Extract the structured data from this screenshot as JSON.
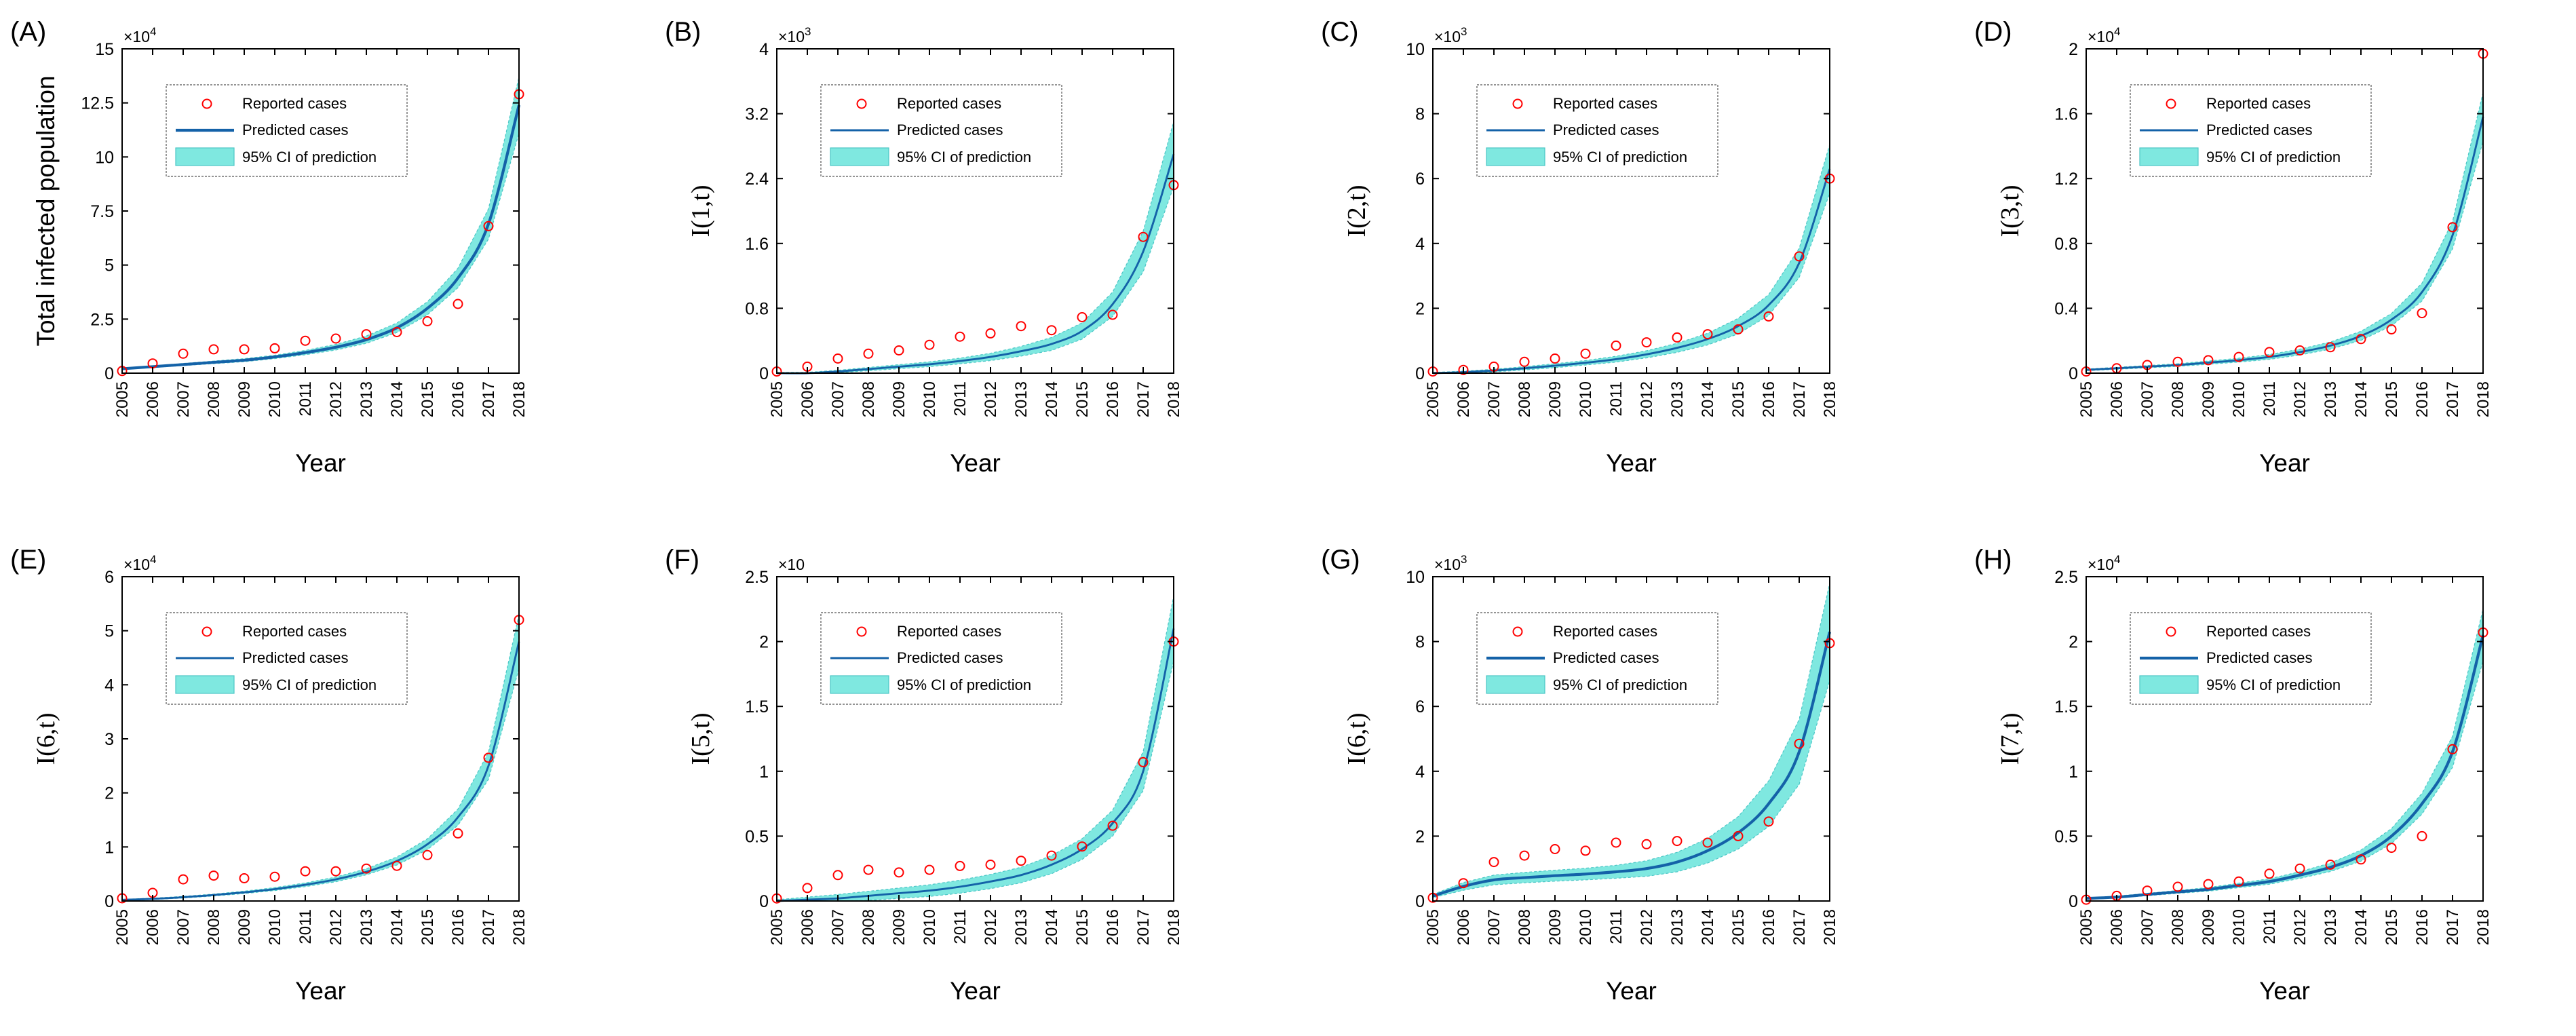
{
  "style": {
    "band_color": "#7fe8e0",
    "band_edge_color": "#4cc6c6",
    "line_color": "#1462a8",
    "marker_color": "#ff0000",
    "axis_color": "#000000"
  },
  "legend": {
    "reported": "Reported cases",
    "predicted": "Predicted cases",
    "ci": "95% CI of prediction"
  },
  "chart_data": [
    {
      "panel": "(A)",
      "type": "line",
      "xlabel": "Year",
      "ylabel": "Total infected population",
      "ylabel_style": "plain",
      "multiplier": "×10",
      "exponent": "4",
      "ylim": [
        0,
        15
      ],
      "yticks": [
        0,
        2.5,
        5,
        7.5,
        10,
        12.5,
        15
      ],
      "ytick_labels": [
        "0",
        "2.5",
        "5",
        "7.5",
        "10",
        "12.5",
        "15"
      ],
      "x": [
        2005,
        2006,
        2007,
        2008,
        2009,
        2010,
        2011,
        2012,
        2013,
        2014,
        2015,
        2016,
        2017,
        2018
      ],
      "reported": [
        0.1,
        0.45,
        0.9,
        1.1,
        1.1,
        1.15,
        1.5,
        1.6,
        1.8,
        1.9,
        2.4,
        3.2,
        6.8,
        12.9
      ],
      "predicted": [
        0.2,
        0.3,
        0.4,
        0.5,
        0.6,
        0.75,
        0.95,
        1.2,
        1.55,
        2.1,
        3.0,
        4.4,
        6.9,
        12.4
      ],
      "ci_half_width": [
        0.03,
        0.04,
        0.05,
        0.06,
        0.07,
        0.08,
        0.1,
        0.13,
        0.17,
        0.22,
        0.3,
        0.45,
        0.7,
        1.3
      ],
      "legend_position": "top-left",
      "line_width": 2.6
    },
    {
      "panel": "(B)",
      "type": "line",
      "xlabel": "Year",
      "ylabel": "I(1,t)",
      "ylabel_style": "italic",
      "multiplier": "×10",
      "exponent": "3",
      "ylim": [
        0,
        4
      ],
      "yticks": [
        0,
        0.8,
        1.6,
        2.4,
        3.2,
        4
      ],
      "ytick_labels": [
        "0",
        "0.8",
        "1.6",
        "2.4",
        "3.2",
        "4"
      ],
      "x": [
        2005,
        2006,
        2007,
        2008,
        2009,
        2010,
        2011,
        2012,
        2013,
        2014,
        2015,
        2016,
        2017,
        2018
      ],
      "reported": [
        0.02,
        0.08,
        0.18,
        0.24,
        0.28,
        0.35,
        0.45,
        0.49,
        0.58,
        0.53,
        0.69,
        0.72,
        1.68,
        2.32
      ],
      "predicted": [
        0.0,
        0.0,
        0.02,
        0.05,
        0.08,
        0.11,
        0.15,
        0.2,
        0.27,
        0.36,
        0.52,
        0.85,
        1.5,
        2.7
      ],
      "ci_half_width": [
        0.01,
        0.01,
        0.015,
        0.02,
        0.025,
        0.03,
        0.035,
        0.045,
        0.06,
        0.08,
        0.1,
        0.15,
        0.25,
        0.4
      ],
      "legend_position": "top-left",
      "line_width": 1.8
    },
    {
      "panel": "(C)",
      "type": "line",
      "xlabel": "Year",
      "ylabel": "I(2,t)",
      "ylabel_style": "italic",
      "multiplier": "×10",
      "exponent": "3",
      "ylim": [
        0,
        10
      ],
      "yticks": [
        0,
        2,
        4,
        6,
        8,
        10
      ],
      "ytick_labels": [
        "0",
        "2",
        "4",
        "6",
        "8",
        "10"
      ],
      "x": [
        2005,
        2006,
        2007,
        2008,
        2009,
        2010,
        2011,
        2012,
        2013,
        2014,
        2015,
        2016,
        2017,
        2018
      ],
      "reported": [
        0.05,
        0.1,
        0.2,
        0.35,
        0.45,
        0.6,
        0.85,
        0.95,
        1.1,
        1.2,
        1.35,
        1.75,
        3.6,
        6.0
      ],
      "predicted": [
        0.0,
        0.03,
        0.08,
        0.15,
        0.23,
        0.32,
        0.43,
        0.58,
        0.78,
        1.05,
        1.45,
        2.1,
        3.4,
        6.3
      ],
      "ci_half_width": [
        0.02,
        0.03,
        0.04,
        0.05,
        0.06,
        0.07,
        0.09,
        0.11,
        0.14,
        0.18,
        0.24,
        0.32,
        0.45,
        0.75
      ],
      "legend_position": "top-left",
      "line_width": 1.8
    },
    {
      "panel": "(D)",
      "type": "line",
      "xlabel": "Year",
      "ylabel": "I(3,t)",
      "ylabel_style": "italic",
      "multiplier": "×10",
      "exponent": "4",
      "ylim": [
        0,
        2
      ],
      "yticks": [
        0,
        0.4,
        0.8,
        1.2,
        1.6,
        2
      ],
      "ytick_labels": [
        "0",
        "0.4",
        "0.8",
        "1.2",
        "1.6",
        "2"
      ],
      "x": [
        2005,
        2006,
        2007,
        2008,
        2009,
        2010,
        2011,
        2012,
        2013,
        2014,
        2015,
        2016,
        2017,
        2018
      ],
      "reported": [
        0.01,
        0.03,
        0.05,
        0.07,
        0.08,
        0.1,
        0.13,
        0.14,
        0.16,
        0.21,
        0.27,
        0.37,
        0.9,
        1.97
      ],
      "predicted": [
        0.02,
        0.03,
        0.04,
        0.05,
        0.065,
        0.08,
        0.1,
        0.13,
        0.17,
        0.23,
        0.33,
        0.5,
        0.85,
        1.58
      ],
      "ci_half_width": [
        0.005,
        0.006,
        0.007,
        0.008,
        0.01,
        0.012,
        0.015,
        0.018,
        0.022,
        0.028,
        0.038,
        0.055,
        0.085,
        0.15
      ],
      "legend_position": "top-left",
      "line_width": 1.8
    },
    {
      "panel": "(E)",
      "type": "line",
      "xlabel": "Year",
      "ylabel": "I(6,t)",
      "ylabel_style": "italic",
      "multiplier": "×10",
      "exponent": "4",
      "ylim": [
        0,
        6
      ],
      "yticks": [
        0,
        1,
        2,
        3,
        4,
        5,
        6
      ],
      "ytick_labels": [
        "0",
        "1",
        "2",
        "3",
        "4",
        "5",
        "6"
      ],
      "x": [
        2005,
        2006,
        2007,
        2008,
        2009,
        2010,
        2011,
        2012,
        2013,
        2014,
        2015,
        2016,
        2017,
        2018
      ],
      "reported": [
        0.05,
        0.15,
        0.4,
        0.47,
        0.42,
        0.45,
        0.55,
        0.55,
        0.6,
        0.65,
        0.85,
        1.25,
        2.65,
        5.2
      ],
      "predicted": [
        0.02,
        0.04,
        0.07,
        0.11,
        0.16,
        0.22,
        0.3,
        0.4,
        0.54,
        0.74,
        1.05,
        1.55,
        2.5,
        4.8
      ],
      "ci_half_width": [
        0.01,
        0.012,
        0.015,
        0.018,
        0.022,
        0.027,
        0.034,
        0.043,
        0.056,
        0.075,
        0.1,
        0.15,
        0.25,
        0.5
      ],
      "legend_position": "top-left",
      "line_width": 1.8
    },
    {
      "panel": "(F)",
      "type": "line",
      "xlabel": "Year",
      "ylabel": "I(5,t)",
      "ylabel_style": "italic",
      "multiplier": "×10",
      "exponent": "",
      "ylim": [
        0,
        2.5
      ],
      "yticks": [
        0,
        0.5,
        1,
        1.5,
        2,
        2.5
      ],
      "ytick_labels": [
        "0",
        "0.5",
        "1",
        "1.5",
        "2",
        "2.5"
      ],
      "x": [
        2005,
        2006,
        2007,
        2008,
        2009,
        2010,
        2011,
        2012,
        2013,
        2014,
        2015,
        2016,
        2017,
        2018
      ],
      "reported": [
        0.02,
        0.1,
        0.2,
        0.24,
        0.22,
        0.24,
        0.27,
        0.28,
        0.31,
        0.35,
        0.42,
        0.58,
        1.07,
        2.0
      ],
      "predicted": [
        0.0,
        0.01,
        0.02,
        0.04,
        0.06,
        0.08,
        0.11,
        0.15,
        0.2,
        0.28,
        0.4,
        0.6,
        1.0,
        2.1
      ],
      "ci_half_width": [
        0.01,
        0.02,
        0.03,
        0.035,
        0.04,
        0.045,
        0.05,
        0.055,
        0.06,
        0.07,
        0.08,
        0.1,
        0.15,
        0.25
      ],
      "legend_position": "top-left",
      "line_width": 1.8
    },
    {
      "panel": "(G)",
      "type": "line",
      "xlabel": "Year",
      "ylabel": "I(6,t)",
      "ylabel_style": "italic",
      "multiplier": "×10",
      "exponent": "3",
      "ylim": [
        0,
        10
      ],
      "yticks": [
        0,
        2,
        4,
        6,
        8,
        10
      ],
      "ytick_labels": [
        "0",
        "2",
        "4",
        "6",
        "8",
        "10"
      ],
      "x": [
        2005,
        2006,
        2007,
        2008,
        2009,
        2010,
        2011,
        2012,
        2013,
        2014,
        2015,
        2016,
        2017,
        2018
      ],
      "reported": [
        0.1,
        0.55,
        1.2,
        1.4,
        1.6,
        1.55,
        1.8,
        1.75,
        1.85,
        1.8,
        2.0,
        2.45,
        4.85,
        7.95
      ],
      "predicted": [
        0.15,
        0.45,
        0.65,
        0.72,
        0.78,
        0.83,
        0.9,
        1.0,
        1.2,
        1.55,
        2.1,
        3.0,
        4.6,
        8.3
      ],
      "ci_half_width": [
        0.05,
        0.12,
        0.15,
        0.16,
        0.17,
        0.18,
        0.2,
        0.24,
        0.3,
        0.38,
        0.5,
        0.7,
        1.0,
        1.5
      ],
      "legend_position": "top-left",
      "line_width": 2.6
    },
    {
      "panel": "(H)",
      "type": "line",
      "xlabel": "Year",
      "ylabel": "I(7,t)",
      "ylabel_style": "italic",
      "multiplier": "×10",
      "exponent": "4",
      "ylim": [
        0,
        2.5
      ],
      "yticks": [
        0,
        0.5,
        1,
        1.5,
        2,
        2.5
      ],
      "ytick_labels": [
        "0",
        "0.5",
        "1",
        "1.5",
        "2",
        "2.5"
      ],
      "x": [
        2005,
        2006,
        2007,
        2008,
        2009,
        2010,
        2011,
        2012,
        2013,
        2014,
        2015,
        2016,
        2017,
        2018
      ],
      "reported": [
        0.01,
        0.04,
        0.08,
        0.11,
        0.13,
        0.15,
        0.21,
        0.25,
        0.28,
        0.32,
        0.41,
        0.5,
        1.17,
        2.07
      ],
      "predicted": [
        0.02,
        0.03,
        0.05,
        0.07,
        0.09,
        0.12,
        0.15,
        0.2,
        0.26,
        0.35,
        0.5,
        0.75,
        1.15,
        2.05
      ],
      "ci_half_width": [
        0.005,
        0.007,
        0.009,
        0.011,
        0.014,
        0.017,
        0.021,
        0.026,
        0.033,
        0.043,
        0.058,
        0.08,
        0.12,
        0.2
      ],
      "legend_position": "top-left",
      "line_width": 2.6
    }
  ]
}
